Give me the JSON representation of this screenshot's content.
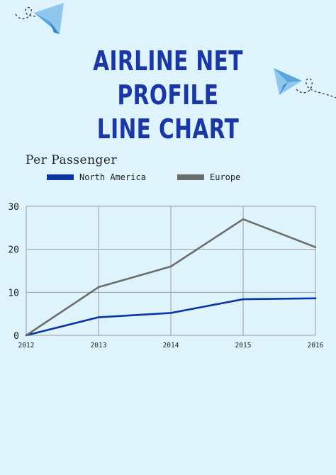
{
  "chart_data": {
    "type": "line",
    "title_lines": [
      "AIRLINE NET",
      "PROFILE",
      "LINE CHART"
    ],
    "subtitle": "Per Passenger",
    "x": [
      "2012",
      "2013",
      "2014",
      "2015",
      "2016"
    ],
    "series": [
      {
        "name": "North America",
        "color": "#0b36a2",
        "values": [
          0,
          4.2,
          5.2,
          8.4,
          8.6
        ]
      },
      {
        "name": "Europe",
        "color": "#6d6d6d",
        "values": [
          0,
          11.2,
          16,
          27,
          20.5
        ]
      }
    ],
    "yticks": [
      0,
      10,
      20,
      30
    ],
    "ylim": [
      0,
      30
    ],
    "grid": true,
    "legend_position": "top"
  },
  "colors": {
    "background": "#dff3fd",
    "title": "#1a37a6",
    "grid": "#9a9a9a"
  },
  "decorations": [
    "paper-plane-icon",
    "paper-plane-icon"
  ]
}
